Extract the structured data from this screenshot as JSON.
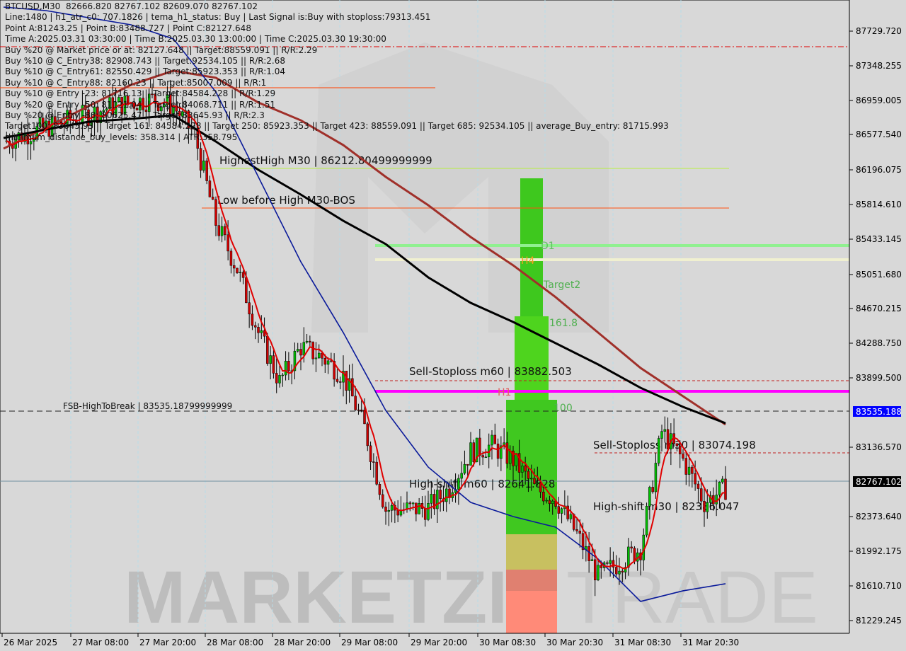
{
  "info_lines": [
    "BTCUSD,M30  82666.820 82767.102 82609.070 82767.102",
    "Line:1480 | h1_atr_c0: 707.1826 | tema_h1_status: Buy | Last Signal is:Buy with stoploss:79313.451",
    "Point A:81243.25 | Point B:83488.727 | Point C:82127.648",
    "Time A:2025.03.31 03:30:00 | Time B:2025.03.30 13:00:00 | Time C:2025.03.30 19:30:00",
    "Buy %20 @ Market price or at: 82127.648 || Target:88559.091 || R/R:2.29",
    "Buy %10 @ C_Entry38: 82908.743 || Target:92534.105 || R/R:2.68",
    "Buy %10 @ C_Entry61: 82550.429 || Target:85923.353 || R/R:1.04",
    "Buy %10 @ C_Entry88: 82160.23 || Target:85007.009 || R/R:1",
    "Buy %10 @ Entry -23: 81716.13 || Target:84584.228 || R/R:1.29",
    "Buy %20 @ Entry -50: 81121.04 || Target:84068.711 || R/R:1.51",
    "Buy %20 @ Entry -88: 80625.47 || Target:83645.93 || R/R:2.3",
    "Target100: 83645.93 || Target 161: 84584.228 || Target 250: 85923.353 || Target 423: 88559.091 || Target 685: 92534.105 || average_Buy_entry: 81715.993",
    "minimum_distance_buy_levels: 358.314 | ATR:358.795"
  ],
  "watermark": "MARKETZI TRADE",
  "colors": {
    "background": "#d8d8d8",
    "up": "#00c000",
    "down": "#d00000",
    "ma_black": "#000000",
    "ma_brown": "#a0302a",
    "ma_blue": "#0a1a9a",
    "tema_red": "#e00000",
    "d1": "#90f090",
    "h4": "#f0f0d0",
    "h1": "#ff00ff",
    "green_zone": "#3ec81e",
    "bid_label": "#0000ff",
    "last_label": "#000000"
  },
  "chart_data": {
    "type": "candlestick",
    "symbol": "BTCUSD,M30",
    "ylim": [
      81229.245,
      87729.72
    ],
    "y_ticks": [
      "87729.720",
      "87348.255",
      "86959.005",
      "86577.540",
      "86196.075",
      "85814.610",
      "85433.145",
      "85051.680",
      "84670.215",
      "84288.750",
      "83899.500",
      "83136.570",
      "82373.640",
      "81992.175",
      "81610.710",
      "81229.245"
    ],
    "x_ticks": [
      "26 Mar 2025",
      "27 Mar 08:00",
      "27 Mar 20:00",
      "28 Mar 08:00",
      "28 Mar 20:00",
      "29 Mar 08:00",
      "29 Mar 20:00",
      "30 Mar 08:30",
      "30 Mar 20:30",
      "31 Mar 08:30",
      "31 Mar 20:30"
    ],
    "closes": [
      86512,
      86590,
      86668,
      86739,
      86809,
      86894,
      86942,
      86980,
      86902,
      86590,
      85615,
      85108,
      84405,
      83859,
      84249,
      84132,
      83937,
      83352,
      82455,
      82455,
      82470,
      82689,
      83095,
      83157,
      83001,
      82689,
      82572,
      82182,
      81714,
      81870,
      82026,
      83313,
      83001,
      82533,
      82689
    ],
    "ma_black": [
      86551,
      86645,
      86731,
      86762,
      86801,
      86512,
      86200,
      85927,
      85638,
      85381,
      85014,
      84733,
      84522,
      84288,
      84054,
      83796,
      83586,
      83406
    ],
    "ma_brown": [
      86434,
      86668,
      86902,
      87137,
      87293,
      87215,
      86942,
      86746,
      86473,
      86122,
      85810,
      85459,
      85147,
      84796,
      84405,
      84015,
      83703,
      83391
    ],
    "ma_blue": [
      87995,
      87956,
      87878,
      87800,
      87644,
      87059,
      86122,
      85186,
      84405,
      83546,
      82922,
      82532,
      82376,
      82259,
      81908,
      81440,
      81557,
      81635
    ],
    "current_bid": "83535.188",
    "last_price": "82767.102",
    "levels": [
      {
        "label": "HighestHigh   M30 | 86212.80499999999",
        "price": 86212.805,
        "color": "#a0f020"
      },
      {
        "label": "Low before High   M30-BOS",
        "price": 85780,
        "color": "#ff4000"
      },
      {
        "label": "Sell-Stoploss m60 | 83882.503",
        "price": 83882.503,
        "color": "#000000"
      },
      {
        "label": "FSB-HighToBreak | 83535.18799999999",
        "price": 83535.188,
        "color": "#000000"
      },
      {
        "label": "Sell-Stoploss m30 | 83074.198",
        "price": 83074.198,
        "color": "#000000"
      },
      {
        "label": "High-shift m60 | 82641.828",
        "price": 82641.828,
        "color": "#000000"
      },
      {
        "label": "High-shift m30 | 82386.047",
        "price": 82386.047,
        "color": "#000000"
      }
    ],
    "zone_labels": {
      "d1": "D1",
      "h4": "H4",
      "target2": "Target2",
      "fib161": "161.8",
      "h1": "H1",
      "fib100": "100"
    }
  }
}
